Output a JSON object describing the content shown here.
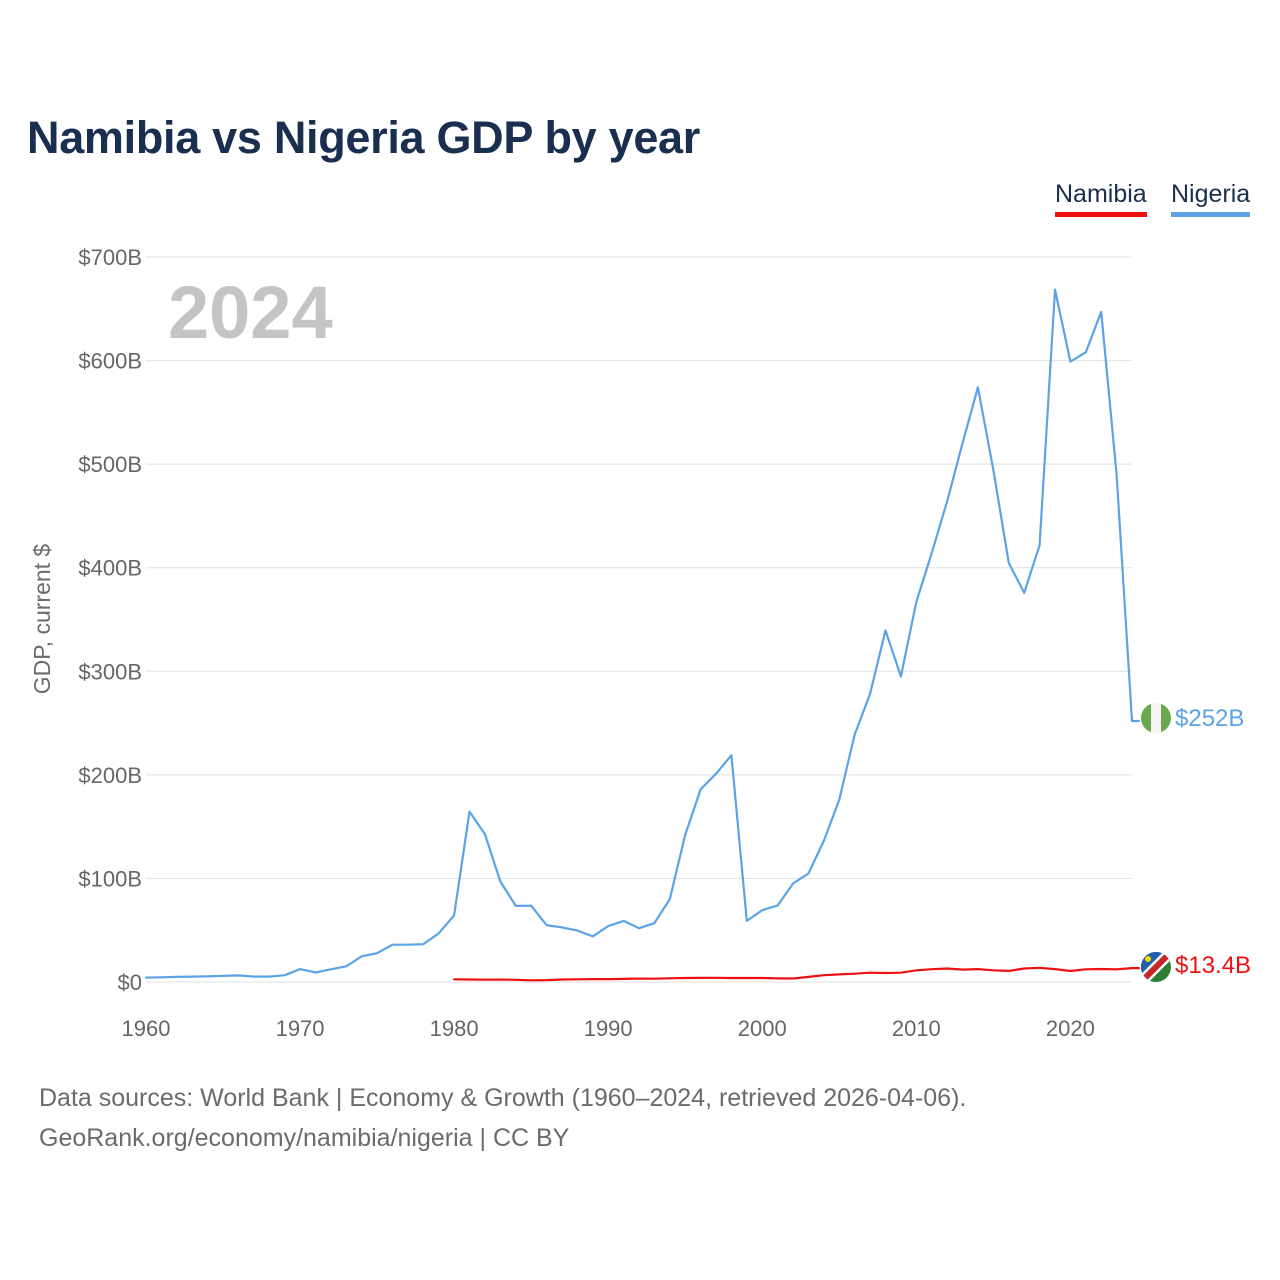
{
  "title": "Namibia vs Nigeria GDP by year",
  "legend": [
    {
      "name": "Namibia",
      "color": "#ee1111"
    },
    {
      "name": "Nigeria",
      "color": "#5ba3e6"
    }
  ],
  "year_label": "2024",
  "footer": {
    "source": "Data sources: World Bank | Economy & Growth (1960–2024, retrieved 2026-04-06).",
    "credit": "GeoRank.org/economy/namibia/nigeria | CC BY"
  },
  "chart_data": {
    "type": "line",
    "title": "Namibia vs Nigeria GDP by year",
    "xlabel": "",
    "ylabel": "GDP, current $",
    "xlim": [
      1960,
      2024
    ],
    "ylim": [
      0,
      700
    ],
    "y_unit": "billion US$",
    "x_ticks": [
      1960,
      1970,
      1980,
      1990,
      2000,
      2010,
      2020
    ],
    "y_ticks": [
      0,
      100,
      200,
      300,
      400,
      500,
      600,
      700
    ],
    "y_tick_labels": [
      "$0",
      "$100B",
      "$200B",
      "$300B",
      "$400B",
      "$500B",
      "$600B",
      "$700B"
    ],
    "grid": true,
    "legend_position": "top-right",
    "series": [
      {
        "name": "Namibia",
        "color": "#ee1111",
        "end_label": "$13.4B",
        "points": [
          [
            1980,
            2.6
          ],
          [
            1981,
            2.4
          ],
          [
            1982,
            2.2
          ],
          [
            1983,
            2.3
          ],
          [
            1984,
            2.1
          ],
          [
            1985,
            1.6
          ],
          [
            1986,
            1.8
          ],
          [
            1987,
            2.4
          ],
          [
            1988,
            2.6
          ],
          [
            1989,
            2.8
          ],
          [
            1990,
            2.8
          ],
          [
            1991,
            3.0
          ],
          [
            1992,
            3.3
          ],
          [
            1993,
            3.2
          ],
          [
            1994,
            3.6
          ],
          [
            1995,
            3.9
          ],
          [
            1996,
            4.0
          ],
          [
            1997,
            4.1
          ],
          [
            1998,
            3.9
          ],
          [
            1999,
            3.9
          ],
          [
            2000,
            3.9
          ],
          [
            2001,
            3.5
          ],
          [
            2002,
            3.4
          ],
          [
            2003,
            4.9
          ],
          [
            2004,
            6.6
          ],
          [
            2005,
            7.3
          ],
          [
            2006,
            8.0
          ],
          [
            2007,
            9.0
          ],
          [
            2008,
            8.7
          ],
          [
            2009,
            9.0
          ],
          [
            2010,
            11.3
          ],
          [
            2011,
            12.4
          ],
          [
            2012,
            13.0
          ],
          [
            2013,
            12.0
          ],
          [
            2014,
            12.5
          ],
          [
            2015,
            11.3
          ],
          [
            2016,
            10.7
          ],
          [
            2017,
            13.0
          ],
          [
            2018,
            13.7
          ],
          [
            2019,
            12.5
          ],
          [
            2020,
            10.6
          ],
          [
            2021,
            12.3
          ],
          [
            2022,
            12.6
          ],
          [
            2023,
            12.3
          ],
          [
            2024,
            13.4
          ]
        ]
      },
      {
        "name": "Nigeria",
        "color": "#5ba3e6",
        "end_label": "$252B",
        "points": [
          [
            1960,
            4.2
          ],
          [
            1961,
            4.5
          ],
          [
            1962,
            4.9
          ],
          [
            1963,
            5.2
          ],
          [
            1964,
            5.5
          ],
          [
            1965,
            5.9
          ],
          [
            1966,
            6.4
          ],
          [
            1967,
            5.2
          ],
          [
            1968,
            5.2
          ],
          [
            1969,
            6.6
          ],
          [
            1970,
            12.5
          ],
          [
            1971,
            9.2
          ],
          [
            1972,
            12.3
          ],
          [
            1973,
            15.2
          ],
          [
            1974,
            24.8
          ],
          [
            1975,
            27.8
          ],
          [
            1976,
            36.0
          ],
          [
            1977,
            36.0
          ],
          [
            1978,
            36.5
          ],
          [
            1979,
            47.0
          ],
          [
            1980,
            64.2
          ],
          [
            1981,
            164.5
          ],
          [
            1982,
            142.8
          ],
          [
            1983,
            97.1
          ],
          [
            1984,
            73.5
          ],
          [
            1985,
            73.7
          ],
          [
            1986,
            54.8
          ],
          [
            1987,
            52.7
          ],
          [
            1988,
            49.6
          ],
          [
            1989,
            44.0
          ],
          [
            1990,
            54.0
          ],
          [
            1991,
            59.0
          ],
          [
            1992,
            51.9
          ],
          [
            1993,
            56.8
          ],
          [
            1994,
            80.0
          ],
          [
            1995,
            142.0
          ],
          [
            1996,
            186.0
          ],
          [
            1997,
            201.0
          ],
          [
            1998,
            219.0
          ],
          [
            1999,
            59.0
          ],
          [
            2000,
            69.4
          ],
          [
            2001,
            74.0
          ],
          [
            2002,
            95.1
          ],
          [
            2003,
            104.9
          ],
          [
            2004,
            136.4
          ],
          [
            2005,
            176.1
          ],
          [
            2006,
            239.0
          ],
          [
            2007,
            278.3
          ],
          [
            2008,
            339.5
          ],
          [
            2009,
            295.0
          ],
          [
            2010,
            366.9
          ],
          [
            2011,
            414.0
          ],
          [
            2012,
            463.9
          ],
          [
            2013,
            520.1
          ],
          [
            2014,
            574.2
          ],
          [
            2015,
            494.6
          ],
          [
            2016,
            404.6
          ],
          [
            2017,
            375.7
          ],
          [
            2018,
            421.7
          ],
          [
            2019,
            668.5
          ],
          [
            2020,
            599.0
          ],
          [
            2021,
            608.0
          ],
          [
            2022,
            647.0
          ],
          [
            2023,
            490.0
          ],
          [
            2024,
            252.0
          ]
        ]
      }
    ]
  }
}
